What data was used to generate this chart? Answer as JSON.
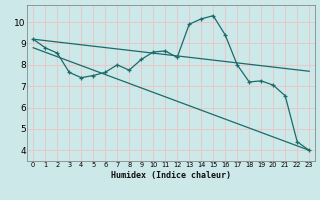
{
  "xlabel": "Humidex (Indice chaleur)",
  "ylabel": "",
  "xlim": [
    -0.5,
    23.5
  ],
  "ylim": [
    3.5,
    10.8
  ],
  "bg_color": "#cce8e8",
  "plot_bg_color": "#cce8e8",
  "grid_color_major": "#e8c8c8",
  "line_color": "#1a6b6b",
  "line1_x": [
    0,
    1,
    2,
    3,
    4,
    5,
    6,
    7,
    8,
    9,
    10,
    11,
    12,
    13,
    14,
    15,
    16,
    17,
    18,
    19,
    20,
    21,
    22,
    23
  ],
  "line1_y": [
    9.2,
    8.8,
    8.55,
    7.65,
    7.4,
    7.5,
    7.65,
    8.0,
    7.75,
    8.25,
    8.6,
    8.65,
    8.35,
    9.9,
    10.15,
    10.3,
    9.4,
    8.0,
    7.2,
    7.25,
    7.05,
    6.55,
    4.4,
    4.0
  ],
  "line2_x": [
    0,
    23
  ],
  "line2_y": [
    9.2,
    7.7
  ],
  "line3_x": [
    0,
    23
  ],
  "line3_y": [
    8.8,
    4.0
  ],
  "xticks": [
    0,
    1,
    2,
    3,
    4,
    5,
    6,
    7,
    8,
    9,
    10,
    11,
    12,
    13,
    14,
    15,
    16,
    17,
    18,
    19,
    20,
    21,
    22,
    23
  ],
  "yticks": [
    4,
    5,
    6,
    7,
    8,
    9,
    10
  ],
  "marker_size": 3.0,
  "line_width": 0.9
}
